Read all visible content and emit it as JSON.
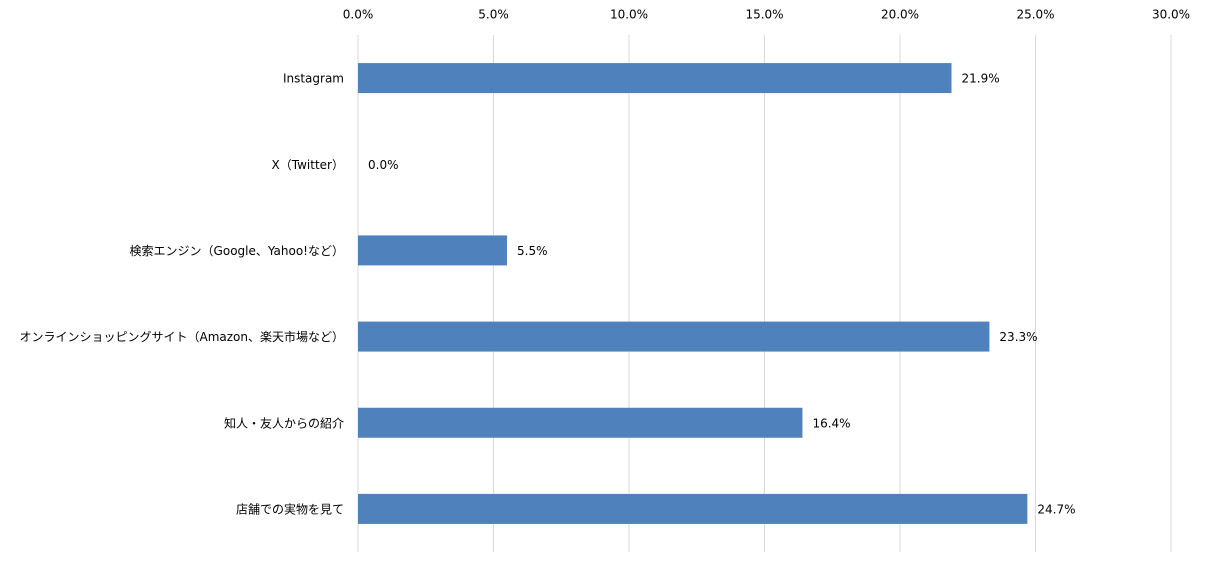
{
  "chart_data": {
    "type": "bar",
    "orientation": "horizontal",
    "categories": [
      "Instagram",
      "X（Twitter）",
      "検索エンジン（Google、Yahoo!など）",
      "オンラインショッピングサイト（Amazon、楽天市場など）",
      "知人・友人からの紹介",
      "店舗での実物を見て"
    ],
    "values": [
      21.9,
      0.0,
      5.5,
      23.3,
      16.4,
      24.7
    ],
    "value_labels": [
      "21.9%",
      "0.0%",
      "5.5%",
      "23.3%",
      "16.4%",
      "24.7%"
    ],
    "color": "#4f81bd",
    "xlim": [
      0,
      30
    ],
    "xticks": [
      {
        "value": 0,
        "label": "0.0%"
      },
      {
        "value": 5,
        "label": "5.0%"
      },
      {
        "value": 10,
        "label": "10.0%"
      },
      {
        "value": 15,
        "label": "15.0%"
      },
      {
        "value": 20,
        "label": "20.0%"
      },
      {
        "value": 25,
        "label": "25.0%"
      },
      {
        "value": 30,
        "label": "30.0%"
      }
    ],
    "grid": true
  }
}
